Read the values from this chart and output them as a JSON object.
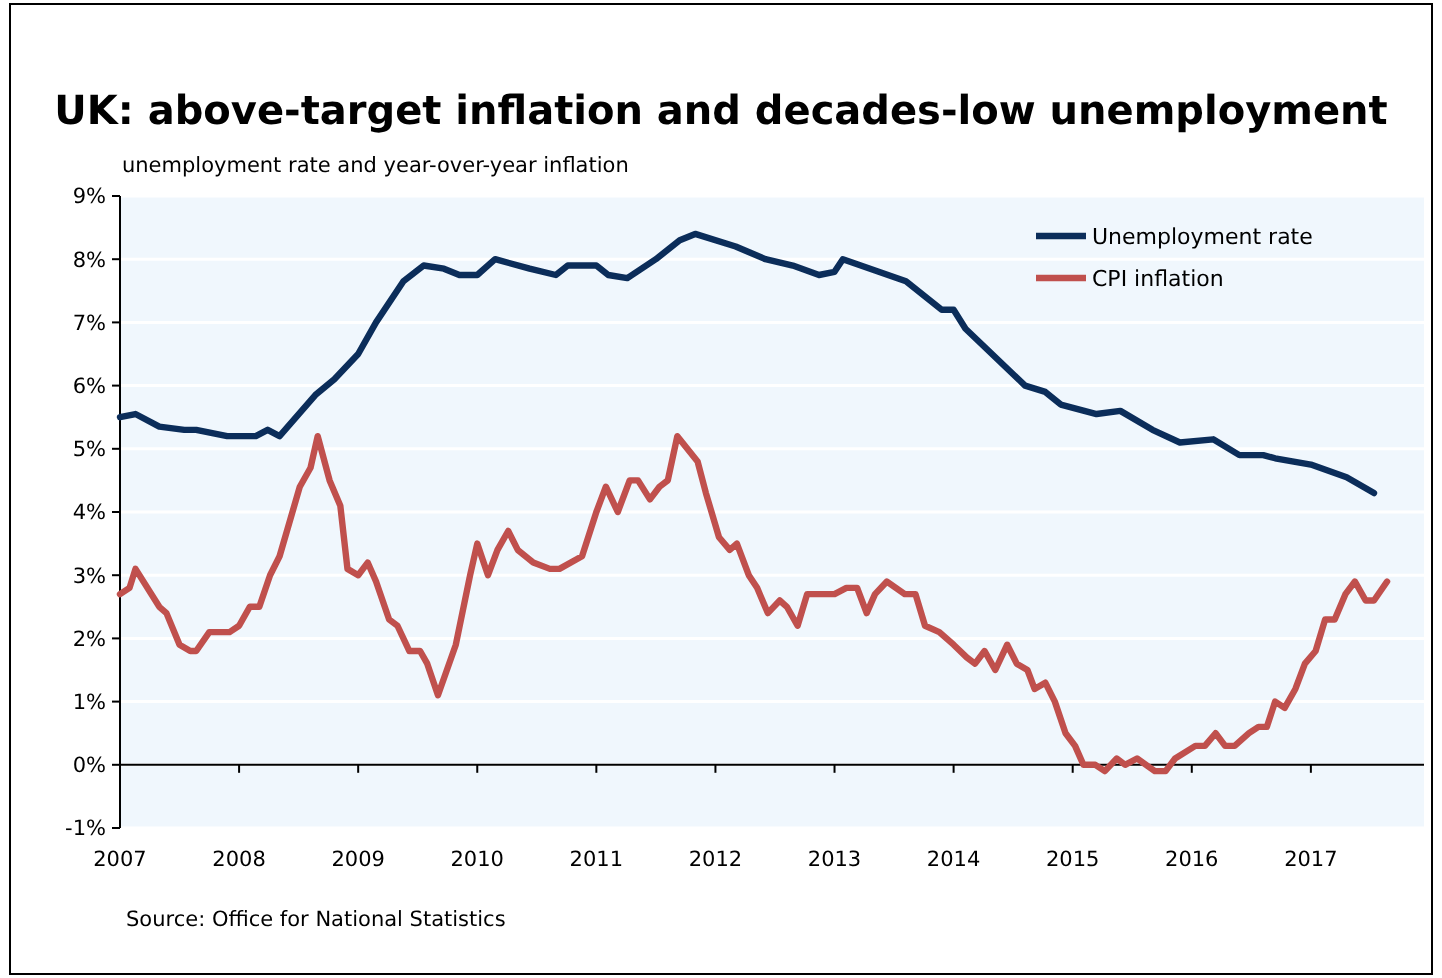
{
  "chart_data": {
    "type": "line",
    "title": "UK: above-target inflation and decades-low unemployment",
    "subtitle": "unemployment rate and year-over-year inflation",
    "annotations": [
      "Source: Office for National Statistics"
    ],
    "xlim": [
      2007,
      2017.95
    ],
    "xticks": [
      2007,
      2008,
      2009,
      2010,
      2011,
      2012,
      2013,
      2014,
      2015,
      2016,
      2017
    ],
    "ylim": [
      -1,
      9
    ],
    "yticks": [
      {
        "value": -1,
        "label": "-1%"
      },
      {
        "value": 0,
        "label": "0%"
      },
      {
        "value": 1,
        "label": "1%"
      },
      {
        "value": 2,
        "label": "2%"
      },
      {
        "value": 3,
        "label": "3%"
      },
      {
        "value": 4,
        "label": "4%"
      },
      {
        "value": 5,
        "label": "5%"
      },
      {
        "value": 6,
        "label": "6%"
      },
      {
        "value": 7,
        "label": "7%"
      },
      {
        "value": 8,
        "label": "8%"
      },
      {
        "value": 9,
        "label": "9%"
      }
    ],
    "grid": "y",
    "legend": "top right",
    "marker": "none",
    "line_style": "solid",
    "series": [
      {
        "name": "Unemployment rate",
        "color": "#0b2d5a",
        "x": [
          2007.0,
          2007.13,
          2007.33,
          2007.54,
          2007.64,
          2007.9,
          2008.14,
          2008.24,
          2008.34,
          2008.64,
          2008.8,
          2009.0,
          2009.15,
          2009.38,
          2009.55,
          2009.72,
          2009.85,
          2010.0,
          2010.15,
          2010.44,
          2010.66,
          2010.76,
          2011.0,
          2011.1,
          2011.26,
          2011.5,
          2011.7,
          2011.83,
          2012.17,
          2012.42,
          2012.65,
          2012.87,
          2013.0,
          2013.07,
          2013.6,
          2013.9,
          2014.0,
          2014.1,
          2014.6,
          2014.77,
          2014.9,
          2015.2,
          2015.4,
          2015.67,
          2015.9,
          2016.18,
          2016.4,
          2016.6,
          2016.7,
          2017.0,
          2017.3,
          2017.53
        ],
        "values": [
          5.5,
          5.55,
          5.35,
          5.3,
          5.3,
          5.2,
          5.2,
          5.3,
          5.2,
          5.85,
          6.1,
          6.5,
          7.0,
          7.65,
          7.9,
          7.85,
          7.75,
          7.75,
          8.0,
          7.85,
          7.75,
          7.9,
          7.9,
          7.75,
          7.7,
          8.0,
          8.3,
          8.4,
          8.2,
          8.0,
          7.9,
          7.75,
          7.8,
          8.0,
          7.65,
          7.2,
          7.2,
          6.9,
          6.0,
          5.9,
          5.7,
          5.55,
          5.6,
          5.3,
          5.1,
          5.15,
          4.9,
          4.9,
          4.85,
          4.75,
          4.55,
          4.3
        ]
      },
      {
        "name": "CPI inflation",
        "color": "#c0504d",
        "x": [
          2007.0,
          2007.08,
          2007.13,
          2007.33,
          2007.39,
          2007.5,
          2007.59,
          2007.64,
          2007.75,
          2007.92,
          2008.0,
          2008.09,
          2008.17,
          2008.26,
          2008.34,
          2008.51,
          2008.6,
          2008.66,
          2008.76,
          2008.85,
          2008.91,
          2009.0,
          2009.08,
          2009.15,
          2009.26,
          2009.33,
          2009.43,
          2009.52,
          2009.58,
          2009.67,
          2009.82,
          2009.94,
          2010.0,
          2010.09,
          2010.17,
          2010.26,
          2010.34,
          2010.47,
          2010.61,
          2010.69,
          2010.88,
          2011.0,
          2011.08,
          2011.18,
          2011.28,
          2011.35,
          2011.45,
          2011.53,
          2011.6,
          2011.68,
          2011.85,
          2011.92,
          2012.03,
          2012.12,
          2012.18,
          2012.28,
          2012.35,
          2012.44,
          2012.54,
          2012.6,
          2012.69,
          2012.77,
          2013.0,
          2013.1,
          2013.19,
          2013.27,
          2013.34,
          2013.44,
          2013.59,
          2013.68,
          2013.76,
          2013.88,
          2014.0,
          2014.11,
          2014.18,
          2014.26,
          2014.35,
          2014.45,
          2014.53,
          2014.62,
          2014.68,
          2014.77,
          2014.85,
          2014.94,
          2015.02,
          2015.09,
          2015.19,
          2015.27,
          2015.37,
          2015.44,
          2015.54,
          2015.69,
          2015.78,
          2015.86,
          2016.03,
          2016.11,
          2016.2,
          2016.28,
          2016.36,
          2016.48,
          2016.56,
          2016.63,
          2016.7,
          2016.78,
          2016.87,
          2016.95,
          2017.04,
          2017.12,
          2017.2,
          2017.29,
          2017.37,
          2017.46,
          2017.53,
          2017.64
        ],
        "values": [
          2.7,
          2.8,
          3.1,
          2.5,
          2.4,
          1.9,
          1.8,
          1.8,
          2.1,
          2.1,
          2.2,
          2.5,
          2.5,
          3.0,
          3.3,
          4.4,
          4.7,
          5.2,
          4.5,
          4.1,
          3.1,
          3.0,
          3.2,
          2.9,
          2.3,
          2.2,
          1.8,
          1.8,
          1.6,
          1.1,
          1.9,
          3.0,
          3.5,
          3.0,
          3.4,
          3.7,
          3.4,
          3.2,
          3.1,
          3.1,
          3.3,
          4.0,
          4.4,
          4.0,
          4.5,
          4.5,
          4.2,
          4.4,
          4.5,
          5.2,
          4.8,
          4.3,
          3.6,
          3.4,
          3.5,
          3.0,
          2.8,
          2.4,
          2.6,
          2.5,
          2.2,
          2.7,
          2.7,
          2.8,
          2.8,
          2.4,
          2.7,
          2.9,
          2.7,
          2.7,
          2.2,
          2.1,
          1.9,
          1.7,
          1.6,
          1.8,
          1.5,
          1.9,
          1.6,
          1.5,
          1.2,
          1.3,
          1.0,
          0.5,
          0.3,
          0.0,
          0.0,
          -0.1,
          0.1,
          0.0,
          0.1,
          -0.1,
          -0.1,
          0.1,
          0.3,
          0.3,
          0.5,
          0.3,
          0.3,
          0.5,
          0.6,
          0.6,
          1.0,
          0.9,
          1.2,
          1.6,
          1.8,
          2.3,
          2.3,
          2.7,
          2.9,
          2.6,
          2.6,
          2.9
        ]
      }
    ]
  }
}
